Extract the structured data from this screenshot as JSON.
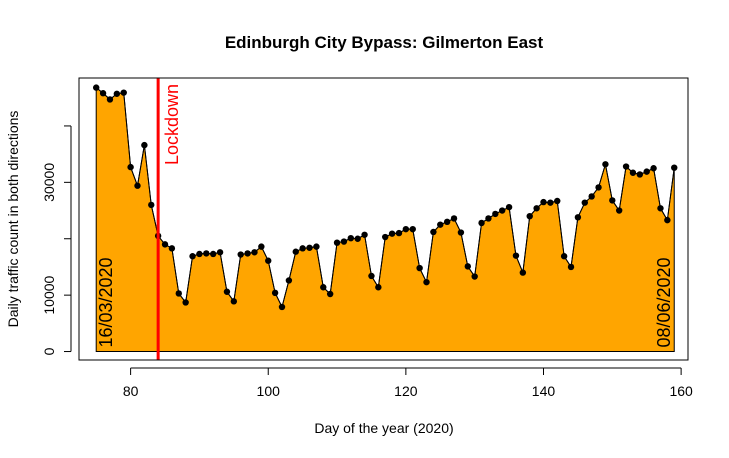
{
  "chart_data": {
    "type": "area",
    "title": "Edinburgh City Bypass: Gilmerton East",
    "xlabel": "Day of the year (2020)",
    "ylabel": "Daily traffic count in both  directions",
    "xlim": [
      72.5,
      161
    ],
    "ylim": [
      -1500,
      48500
    ],
    "xticks": [
      80,
      100,
      120,
      140,
      160
    ],
    "yticks": [
      0,
      10000,
      30000
    ],
    "ytick_labels": [
      "0",
      "10000",
      "30000"
    ],
    "grid": false,
    "legend": "none",
    "fill_color": "#ffa500",
    "line_color": "#000000",
    "point_color": "#000000",
    "x": [
      75,
      76,
      77,
      78,
      79,
      80,
      81,
      82,
      83,
      84,
      85,
      86,
      87,
      88,
      89,
      90,
      91,
      92,
      93,
      94,
      95,
      96,
      97,
      98,
      99,
      100,
      101,
      102,
      103,
      104,
      105,
      106,
      107,
      108,
      109,
      110,
      111,
      112,
      113,
      114,
      115,
      116,
      117,
      118,
      119,
      120,
      121,
      122,
      123,
      124,
      125,
      126,
      127,
      128,
      129,
      130,
      131,
      132,
      133,
      134,
      135,
      136,
      137,
      138,
      139,
      140,
      141,
      142,
      143,
      144,
      145,
      146,
      147,
      148,
      149,
      150,
      151,
      152,
      153,
      154,
      155,
      156,
      157,
      158,
      159
    ],
    "values": [
      46800,
      45800,
      44700,
      45700,
      45900,
      32700,
      29400,
      36600,
      26000,
      20500,
      19000,
      18300,
      10300,
      8700,
      16900,
      17300,
      17400,
      17300,
      17600,
      10600,
      8900,
      17200,
      17400,
      17600,
      18600,
      16100,
      10400,
      7900,
      12600,
      17700,
      18300,
      18400,
      18600,
      11400,
      10200,
      19300,
      19500,
      20100,
      20000,
      20700,
      13400,
      11400,
      20300,
      20900,
      21000,
      21700,
      21700,
      14800,
      12300,
      21200,
      22500,
      23000,
      23600,
      21100,
      15100,
      13300,
      22800,
      23600,
      24400,
      25000,
      25600,
      17000,
      14000,
      24000,
      25400,
      26500,
      26400,
      26700,
      16900,
      15000,
      23800,
      26400,
      27500,
      29100,
      33200,
      26800,
      25000,
      32800,
      31700,
      31400,
      31900,
      32500,
      25400,
      23300,
      32600
    ],
    "annotations": [
      {
        "text": "16/03/2020",
        "x": 75
      },
      {
        "text": "Lockdown",
        "x": 84,
        "color": "#ff0000"
      },
      {
        "text": "08/06/2020",
        "x": 159
      }
    ]
  }
}
